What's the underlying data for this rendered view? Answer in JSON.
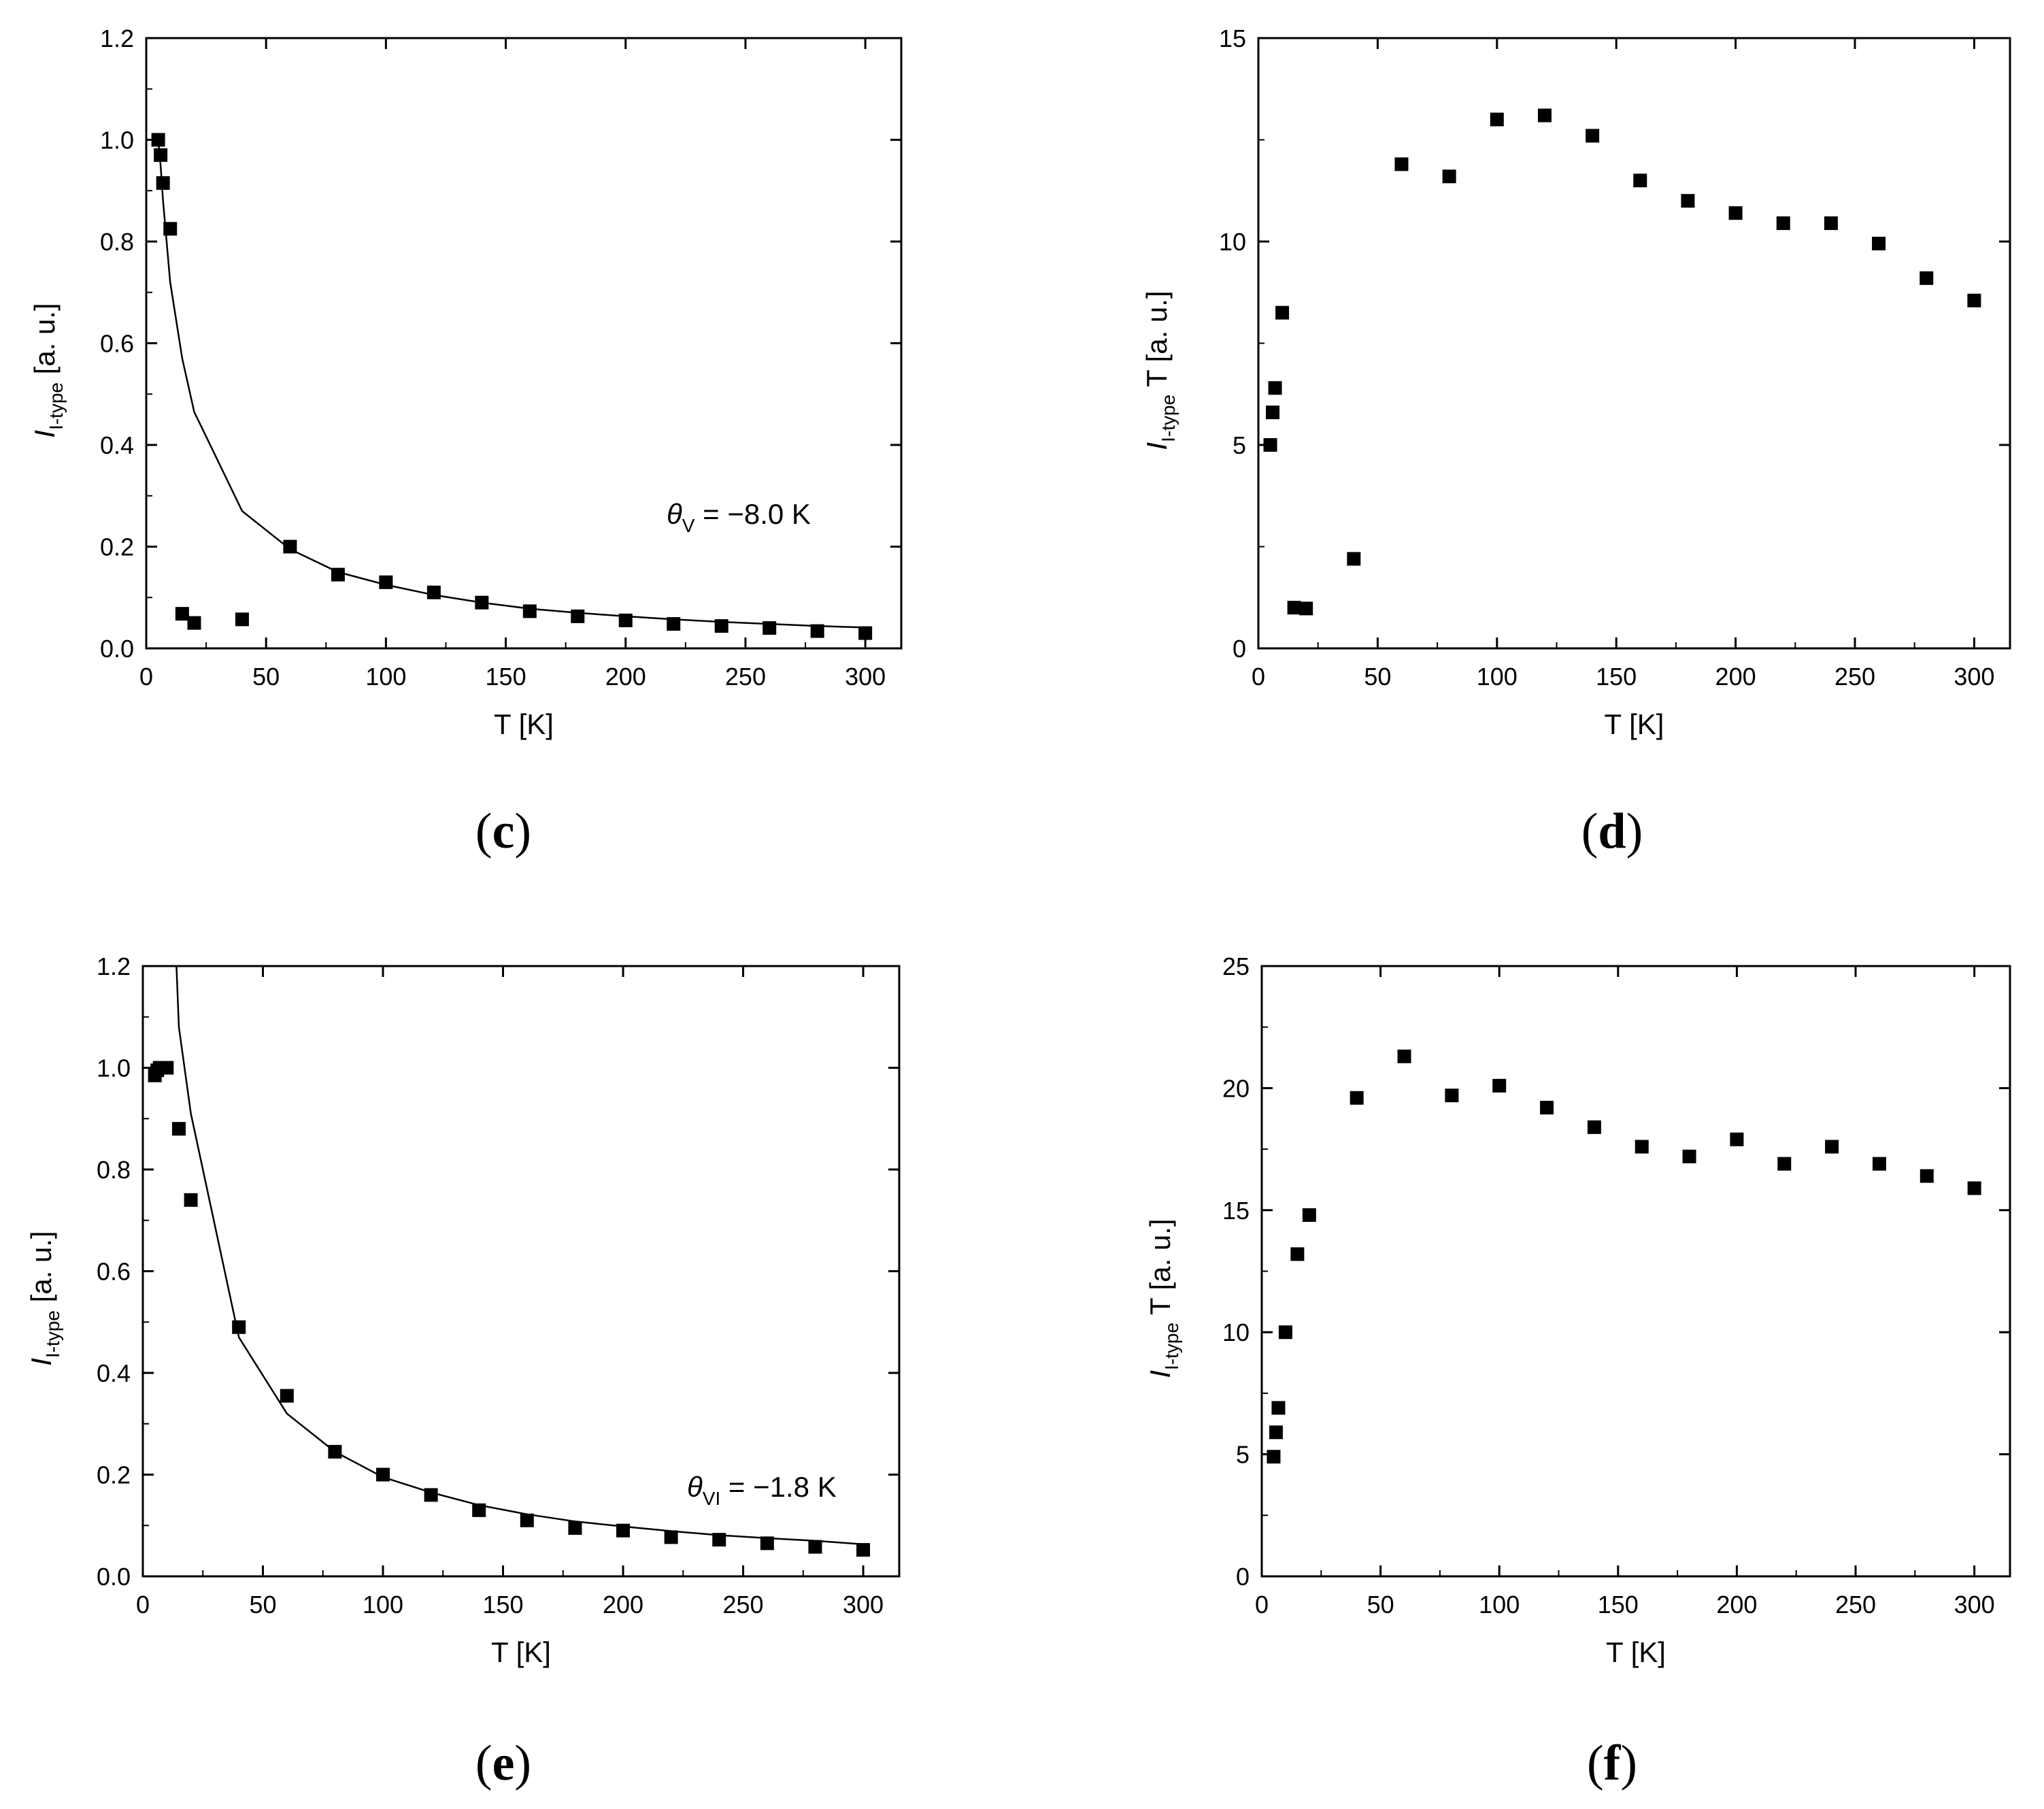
{
  "chart_data": [
    {
      "id": "c",
      "type": "scatter",
      "panel_label": "c",
      "xlabel": "T [K]",
      "ylabel_italic": "I",
      "ylabel_sub": "I-type",
      "ylabel_rest": "[a. u.]",
      "xlim": [
        0,
        315
      ],
      "ylim": [
        0,
        1.2
      ],
      "xticks": [
        "0",
        "50",
        "100",
        "150",
        "200",
        "250",
        "300"
      ],
      "yticks": [
        "0.0",
        "0.2",
        "0.4",
        "0.6",
        "0.8",
        "1.0",
        "1.2"
      ],
      "annotation": {
        "symbol": "θ",
        "sub": "V",
        "text": " = −8.0 K"
      },
      "points": {
        "x": [
          5,
          6,
          7,
          10,
          15,
          20,
          40,
          60,
          80,
          100,
          120,
          140,
          160,
          180,
          200,
          220,
          240,
          260,
          280,
          300
        ],
        "y": [
          1.0,
          0.97,
          0.915,
          0.825,
          0.068,
          0.05,
          0.057,
          0.2,
          0.145,
          0.13,
          0.11,
          0.09,
          0.073,
          0.063,
          0.055,
          0.048,
          0.044,
          0.04,
          0.034,
          0.03
        ]
      },
      "fit": {
        "x": [
          5,
          6,
          7,
          10,
          15,
          20,
          40,
          60,
          80,
          100,
          120,
          140,
          160,
          180,
          200,
          220,
          240,
          260,
          280,
          300
        ],
        "y": [
          1.0,
          0.95,
          0.88,
          0.72,
          0.57,
          0.465,
          0.27,
          0.195,
          0.15,
          0.125,
          0.105,
          0.09,
          0.078,
          0.07,
          0.063,
          0.057,
          0.052,
          0.048,
          0.044,
          0.041
        ]
      }
    },
    {
      "id": "d",
      "type": "scatter",
      "panel_label": "d",
      "xlabel": "T [K]",
      "ylabel_italic": "I",
      "ylabel_sub": "I-type",
      "ylabel_rest": "T [a. u.]",
      "xlim": [
        0,
        315
      ],
      "ylim": [
        0,
        15
      ],
      "xticks": [
        "0",
        "50",
        "100",
        "150",
        "200",
        "250",
        "300"
      ],
      "yticks": [
        "0",
        "5",
        "10",
        "15"
      ],
      "points": {
        "x": [
          5,
          6,
          7,
          10,
          15,
          20,
          40,
          60,
          80,
          100,
          120,
          140,
          160,
          180,
          200,
          220,
          240,
          260,
          280,
          300
        ],
        "y": [
          5.0,
          5.8,
          6.4,
          8.25,
          1.0,
          0.98,
          2.2,
          11.9,
          11.6,
          13.0,
          13.1,
          12.6,
          11.5,
          11.0,
          10.7,
          10.45,
          10.45,
          9.95,
          9.1,
          8.55
        ]
      }
    },
    {
      "id": "e",
      "type": "scatter",
      "panel_label": "e",
      "xlabel": "T [K]",
      "ylabel_italic": "I",
      "ylabel_sub": "I-type",
      "ylabel_rest": "[a. u.]",
      "xlim": [
        0,
        315
      ],
      "ylim": [
        0,
        1.2
      ],
      "xticks": [
        "0",
        "50",
        "100",
        "150",
        "200",
        "250",
        "300"
      ],
      "yticks": [
        "0.0",
        "0.2",
        "0.4",
        "0.6",
        "0.8",
        "1.0",
        "1.2"
      ],
      "annotation": {
        "symbol": "θ",
        "sub": "VI",
        "text": " = −1.8 K"
      },
      "points": {
        "x": [
          5,
          6,
          7,
          10,
          15,
          20,
          40,
          60,
          80,
          100,
          120,
          140,
          160,
          180,
          200,
          220,
          240,
          260,
          280,
          300
        ],
        "y": [
          0.985,
          0.995,
          1.0,
          1.0,
          0.88,
          0.74,
          0.49,
          0.355,
          0.245,
          0.2,
          0.16,
          0.13,
          0.11,
          0.095,
          0.09,
          0.077,
          0.072,
          0.065,
          0.058,
          0.052
        ]
      },
      "fit": {
        "x": [
          14,
          15,
          20,
          40,
          60,
          80,
          100,
          120,
          140,
          160,
          180,
          200,
          220,
          240,
          260,
          280,
          300
        ],
        "y": [
          1.2,
          1.08,
          0.91,
          0.47,
          0.32,
          0.245,
          0.195,
          0.165,
          0.14,
          0.122,
          0.108,
          0.098,
          0.089,
          0.081,
          0.075,
          0.07,
          0.063
        ]
      }
    },
    {
      "id": "f",
      "type": "scatter",
      "panel_label": "f",
      "xlabel": "T [K]",
      "ylabel_italic": "I",
      "ylabel_sub": "I-type",
      "ylabel_rest": "T [a. u.]",
      "xlim": [
        0,
        315
      ],
      "ylim": [
        0,
        25
      ],
      "xticks": [
        "0",
        "50",
        "100",
        "150",
        "200",
        "250",
        "300"
      ],
      "yticks": [
        "0",
        "5",
        "10",
        "15",
        "20",
        "25"
      ],
      "points": {
        "x": [
          5,
          6,
          7,
          10,
          15,
          20,
          40,
          60,
          80,
          100,
          120,
          140,
          160,
          180,
          200,
          220,
          240,
          260,
          280,
          300
        ],
        "y": [
          4.9,
          5.9,
          6.9,
          10.0,
          13.2,
          14.8,
          19.6,
          21.3,
          19.7,
          20.1,
          19.2,
          18.4,
          17.6,
          17.2,
          17.9,
          16.9,
          17.6,
          16.9,
          16.4,
          15.9
        ]
      }
    }
  ]
}
